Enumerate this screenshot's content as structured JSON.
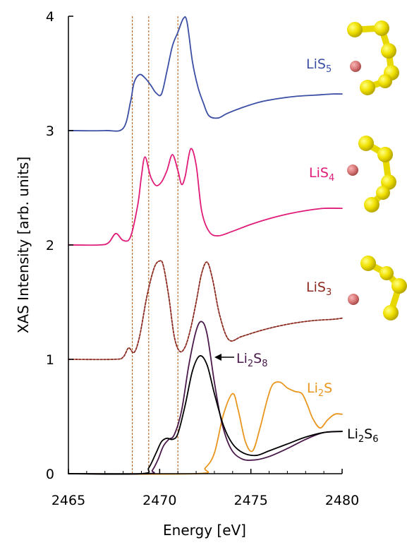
{
  "chart_data": {
    "type": "line",
    "xlabel": "Energy [eV]",
    "ylabel": "XAS Intensity [arb. units]",
    "xlim": [
      2465,
      2480
    ],
    "ylim": [
      0,
      4
    ],
    "x_ticks": [
      "2465",
      "2470",
      "2475",
      "2480"
    ],
    "y_ticks": [
      "0",
      "1",
      "2",
      "3",
      "4"
    ],
    "grid": false,
    "reference_lines_x": [
      2468.5,
      2469.4,
      2471.0
    ],
    "reference_line_color": "#b5651d",
    "series": [
      {
        "name": "LiS5",
        "label_base": "LiS",
        "label_sub": "5",
        "color": "#3c4fa5",
        "dashed": false,
        "x": [
          2465,
          2467,
          2468,
          2468.4,
          2468.6,
          2468.9,
          2469.2,
          2469.5,
          2469.8,
          2470.1,
          2470.4,
          2470.7,
          2471.0,
          2471.3,
          2471.5,
          2471.8,
          2472.1,
          2472.4,
          2472.7,
          2473.2,
          2473.7,
          2474.5,
          2475.5,
          2476.5,
          2477.5,
          2478.5,
          2479.5,
          2480
        ],
        "y": [
          3.0,
          3.0,
          3.02,
          3.25,
          3.42,
          3.49,
          3.46,
          3.4,
          3.33,
          3.32,
          3.52,
          3.74,
          3.86,
          3.98,
          3.95,
          3.6,
          3.38,
          3.24,
          3.13,
          3.11,
          3.15,
          3.2,
          3.25,
          3.28,
          3.3,
          3.31,
          3.32,
          3.32
        ]
      },
      {
        "name": "LiS4",
        "label_base": "LiS",
        "label_sub": "4",
        "color": "#e01b78",
        "dashed": false,
        "x": [
          2465,
          2466.7,
          2467.2,
          2467.6,
          2468.0,
          2468.4,
          2468.8,
          2469.0,
          2469.2,
          2469.5,
          2469.8,
          2470.1,
          2470.4,
          2470.7,
          2471.0,
          2471.2,
          2471.4,
          2471.7,
          2472.0,
          2472.3,
          2472.7,
          2473.2,
          2474.0,
          2475.0,
          2476.0,
          2477.0,
          2478.0,
          2479.0,
          2480
        ],
        "y": [
          2.0,
          2.0,
          2.02,
          2.1,
          2.04,
          2.07,
          2.35,
          2.6,
          2.77,
          2.6,
          2.52,
          2.55,
          2.65,
          2.79,
          2.65,
          2.53,
          2.6,
          2.84,
          2.7,
          2.3,
          2.12,
          2.08,
          2.12,
          2.18,
          2.23,
          2.27,
          2.3,
          2.32,
          2.32
        ]
      },
      {
        "name": "LiS3",
        "label_base": "LiS",
        "label_sub": "3",
        "color": "#8b2a1f",
        "dashed": true,
        "x": [
          2465,
          2467.5,
          2468.0,
          2468.3,
          2468.6,
          2468.9,
          2469.3,
          2469.7,
          2470.0,
          2470.2,
          2470.5,
          2470.8,
          2471.1,
          2471.4,
          2471.7,
          2472.0,
          2472.3,
          2472.6,
          2472.9,
          2473.3,
          2473.8,
          2474.5,
          2475.5,
          2476.5,
          2477.5,
          2478.5,
          2479.5,
          2480
        ],
        "y": [
          1.0,
          1.0,
          1.02,
          1.1,
          1.06,
          1.2,
          1.55,
          1.8,
          1.86,
          1.82,
          1.55,
          1.2,
          1.07,
          1.11,
          1.27,
          1.5,
          1.75,
          1.85,
          1.7,
          1.38,
          1.17,
          1.2,
          1.25,
          1.29,
          1.32,
          1.34,
          1.35,
          1.36
        ]
      },
      {
        "name": "Li2S8",
        "label_base": "Li",
        "label_sub": "2",
        "label_tail": "S",
        "label_sub2": "8",
        "color": "#4a1a4a",
        "dashed": false,
        "x": [
          2465,
          2469.3,
          2469.6,
          2469.9,
          2470.2,
          2470.5,
          2470.8,
          2471.2,
          2471.6,
          2472.0,
          2472.3,
          2472.6,
          2473.0,
          2473.4,
          2473.9,
          2474.5,
          2475.2,
          2476.0,
          2477.0,
          2478.0,
          2479.0,
          2480
        ],
        "y": [
          0.0,
          0.0,
          0.03,
          0.12,
          0.24,
          0.3,
          0.34,
          0.55,
          0.95,
          1.25,
          1.33,
          1.22,
          0.8,
          0.45,
          0.22,
          0.13,
          0.12,
          0.15,
          0.22,
          0.3,
          0.36,
          0.37
        ]
      },
      {
        "name": "Li2S6",
        "label_base": "Li",
        "label_sub": "2",
        "label_tail": "S",
        "label_sub2": "6",
        "color": "#000000",
        "dashed": false,
        "x": [
          2465,
          2469.0,
          2469.4,
          2469.8,
          2470.1,
          2470.4,
          2470.7,
          2471.0,
          2471.4,
          2471.8,
          2472.2,
          2472.6,
          2473.0,
          2473.5,
          2474.0,
          2474.6,
          2475.3,
          2476.0,
          2477.0,
          2478.0,
          2479.0,
          2480
        ],
        "y": [
          0.0,
          0.0,
          0.05,
          0.18,
          0.28,
          0.31,
          0.3,
          0.35,
          0.6,
          0.9,
          1.03,
          0.95,
          0.7,
          0.42,
          0.26,
          0.18,
          0.16,
          0.2,
          0.26,
          0.32,
          0.36,
          0.37
        ]
      },
      {
        "name": "Li2S",
        "label_base": "Li",
        "label_sub": "2",
        "label_tail": "S",
        "color": "#e8961e",
        "dashed": false,
        "x": [
          2465,
          2472.0,
          2472.5,
          2473.0,
          2473.5,
          2474.0,
          2474.3,
          2474.7,
          2475.1,
          2475.5,
          2475.9,
          2476.2,
          2476.6,
          2477.0,
          2477.4,
          2477.8,
          2478.1,
          2478.4,
          2478.8,
          2479.2,
          2479.6,
          2480
        ],
        "y": [
          0.0,
          0.0,
          0.05,
          0.18,
          0.52,
          0.7,
          0.56,
          0.28,
          0.2,
          0.4,
          0.65,
          0.78,
          0.8,
          0.75,
          0.72,
          0.7,
          0.6,
          0.48,
          0.4,
          0.47,
          0.52,
          0.52
        ]
      }
    ]
  }
}
